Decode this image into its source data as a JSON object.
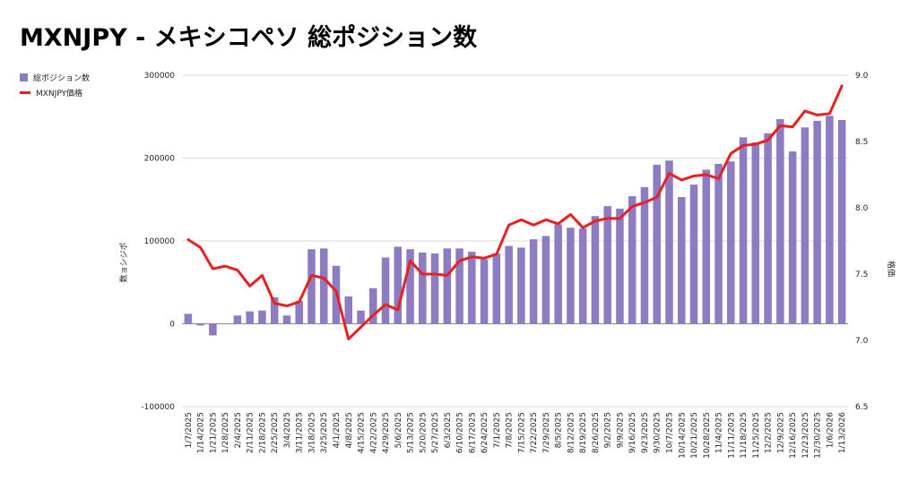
{
  "title": "MXNJPY - メキシコペソ 総ポジション数",
  "colors": {
    "bar": "#8e7cc3",
    "line": "#e8201f",
    "grid": "#d9d9d9"
  },
  "chart_data": {
    "type": "bar+line",
    "title": "MXNJPY - メキシコペソ 総ポジション数",
    "ylabel": "数ョシジポ",
    "y2label": "格価",
    "ylim": [
      -100000,
      300000
    ],
    "y2lim": [
      6.5,
      9.0
    ],
    "yticks": [
      "-100000",
      "0",
      "100000",
      "200000",
      "300000"
    ],
    "y2ticks": [
      "6.5",
      "7.0",
      "7.5",
      "8.0",
      "8.5",
      "9.0"
    ],
    "legend_position": "left",
    "grid": true,
    "categories": [
      "1/7/2025",
      "1/14/2025",
      "1/21/2025",
      "1/28/2025",
      "2/4/2025",
      "2/11/2025",
      "2/18/2025",
      "2/25/2025",
      "3/4/2025",
      "3/11/2025",
      "3/18/2025",
      "3/25/2025",
      "4/1/2025",
      "4/8/2025",
      "4/15/2025",
      "4/22/2025",
      "4/29/2025",
      "5/6/2025",
      "5/13/2025",
      "5/20/2025",
      "5/27/2025",
      "6/3/2025",
      "6/10/2025",
      "6/17/2025",
      "6/24/2025",
      "7/1/2025",
      "7/8/2025",
      "7/15/2025",
      "7/22/2025",
      "7/29/2025",
      "8/5/2025",
      "8/12/2025",
      "8/19/2025",
      "8/26/2025",
      "9/2/2025",
      "9/9/2025",
      "9/16/2025",
      "9/23/2025",
      "9/30/2025",
      "10/7/2025",
      "10/14/2025",
      "10/21/2025",
      "10/28/2025",
      "11/4/2025",
      "11/11/2025",
      "11/18/2025",
      "11/25/2025",
      "12/2/2025",
      "12/9/2025",
      "12/16/2025",
      "12/23/2025",
      "12/30/2025",
      "1/6/2026",
      "1/13/2026"
    ],
    "tick_labels": [
      "1/7/2025",
      "1/14/2025",
      "1/21/2025",
      "1/28/2025",
      "2/4/2025",
      "2/11/2025",
      "2/18/2025",
      "2/25/2025",
      "3/4/2025",
      "3/11/2025",
      "3/18/2025",
      "3/25/2025",
      "4/1/2025",
      "4/8/2025",
      "4/15/2025",
      "4/22/2025",
      "4/29/2025",
      "5/6/2025",
      "5/13/2025",
      "5/20/2025",
      "5/27/2025",
      "6/3/2025",
      "6/10/2025",
      "6/17/2025",
      "6/24/2025",
      "7/1/2025",
      "7/8/2025",
      "7/15/2025",
      "7/22/2025",
      "7/29/2025",
      "8/5/2025",
      "8/12/2025",
      "8/19/2025",
      "8/26/2025",
      "9/2/2025",
      "9/9/2025",
      "9/16/2025",
      "9/23/2025",
      "9/30/2025",
      "10/7/2025",
      "10/14/2025",
      "10/21/2025",
      "10/28/2025",
      "11/4/2025",
      "11/11/2025",
      "11/18/2025",
      "11/25/2025",
      "12/2/2025",
      "12/9/2025",
      "12/16/2025",
      "12/23/2025",
      "12/30/2025",
      "1/6/2026",
      "1/13/2026"
    ],
    "series": [
      {
        "name": "総ポジション数",
        "type": "bar",
        "axis": "left",
        "values": [
          12000,
          -2000,
          -14000,
          0,
          10000,
          15000,
          16000,
          32000,
          10000,
          28000,
          90000,
          91000,
          70000,
          33000,
          16000,
          43000,
          80000,
          93000,
          90000,
          86000,
          85000,
          91000,
          91000,
          87000,
          78000,
          85000,
          94000,
          92000,
          102000,
          106000,
          120000,
          116000,
          115000,
          130000,
          142000,
          139000,
          154000,
          165000,
          192000,
          197000,
          153000,
          168000,
          186000,
          193000,
          196000,
          225000,
          219000,
          230000,
          247000,
          208000,
          237000,
          245000,
          251000,
          246000
        ]
      },
      {
        "name": "MXNJPY価格",
        "type": "line",
        "axis": "right",
        "values": [
          7.76,
          7.7,
          7.54,
          7.56,
          7.53,
          7.41,
          7.49,
          7.28,
          7.26,
          7.29,
          7.49,
          7.47,
          7.37,
          7.01,
          7.1,
          7.19,
          7.27,
          7.23,
          7.6,
          7.5,
          7.5,
          7.49,
          7.6,
          7.63,
          7.62,
          7.65,
          7.87,
          7.91,
          7.87,
          7.91,
          7.88,
          7.95,
          7.85,
          7.9,
          7.92,
          7.92,
          8.01,
          8.04,
          8.08,
          8.26,
          8.21,
          8.24,
          8.25,
          8.22,
          8.41,
          8.47,
          8.48,
          8.51,
          8.62,
          8.61,
          8.73,
          8.7,
          8.71,
          8.92
        ]
      }
    ]
  }
}
